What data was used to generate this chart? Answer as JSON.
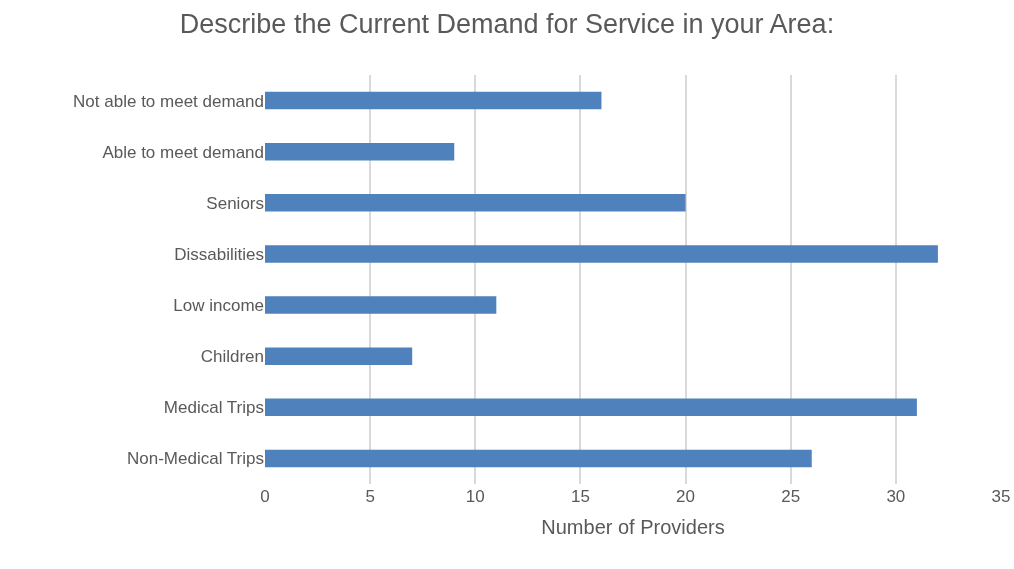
{
  "chart_data": {
    "type": "bar",
    "orientation": "horizontal",
    "title": "Describe the Current Demand for Service in your Area:",
    "xlabel": "Number of Providers",
    "categories": [
      "Not able to meet demand",
      "Able to meet demand",
      "Seniors",
      "Dissabilities",
      "Low income",
      "Children",
      "Medical Trips",
      "Non-Medical Trips"
    ],
    "values": [
      16,
      9,
      20,
      32,
      11,
      7,
      31,
      26
    ],
    "color": "#4f81bd",
    "xlim": [
      0,
      35
    ],
    "xticks": [
      0,
      5,
      10,
      15,
      20,
      25,
      30,
      35
    ],
    "grid": "x"
  }
}
